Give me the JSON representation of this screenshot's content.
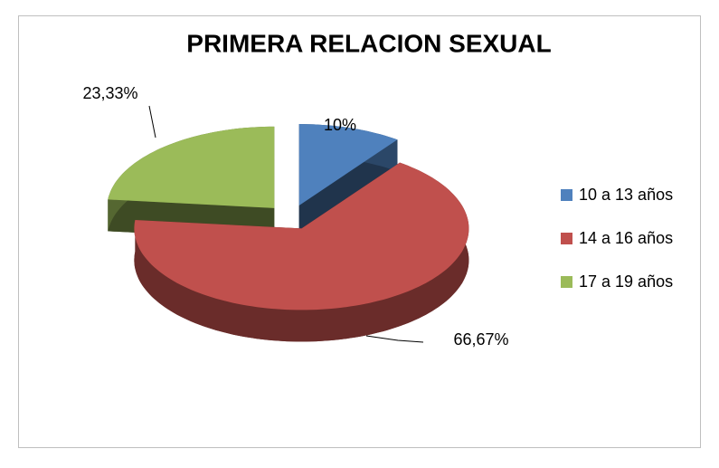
{
  "chart_data": {
    "type": "pie",
    "title": "PRIMERA RELACION SEXUAL",
    "categories": [
      "10 a 13 años",
      "14 a 16 años",
      "17 a 19 años"
    ],
    "values": [
      10,
      66.67,
      23.33
    ],
    "value_labels": [
      "10%",
      "66,67%",
      "23,33%"
    ],
    "colors": [
      "#4f81bd",
      "#c0504d",
      "#9bbb59"
    ],
    "legend": "right"
  }
}
